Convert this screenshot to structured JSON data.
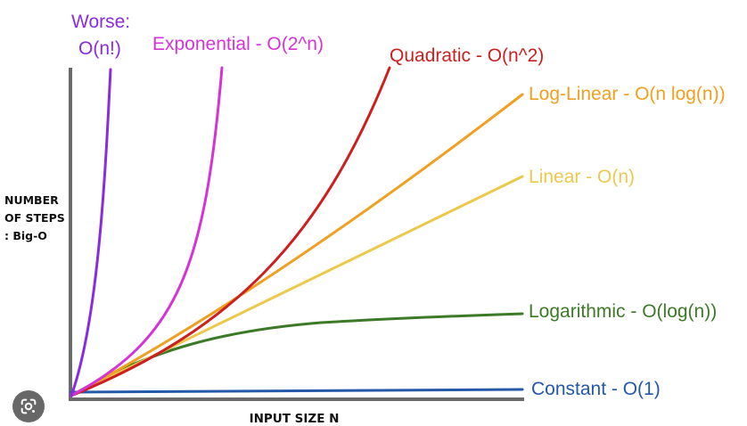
{
  "chart_data": {
    "type": "line",
    "xlabel": "INPUT SIZE N",
    "ylabel": [
      "NUMBER",
      "OF STEPS",
      ": Big-O"
    ],
    "grid": false,
    "legend": "inline-at-line-ends",
    "series": [
      {
        "key": "factorial",
        "label_lines": [
          "Worse:",
          "O(n!)"
        ],
        "color": "#8a2be2"
      },
      {
        "key": "exponential",
        "label_lines": [
          "Exponential - O(2^n)"
        ],
        "color": "#d633d6"
      },
      {
        "key": "quadratic",
        "label_lines": [
          "Quadratic - O(n^2)"
        ],
        "color": "#cc1f1f"
      },
      {
        "key": "loglinear",
        "label_lines": [
          "Log-Linear - O(n log(n))"
        ],
        "color": "#f0a020"
      },
      {
        "key": "linear",
        "label_lines": [
          "Linear - O(n)"
        ],
        "color": "#ecc94b"
      },
      {
        "key": "logarithmic",
        "label_lines": [
          "Logarithmic - O(log(n))"
        ],
        "color": "#3c7a28"
      },
      {
        "key": "constant",
        "label_lines": [
          "Constant - O(1)"
        ],
        "color": "#2458a8"
      }
    ]
  },
  "overlay": {
    "lens_icon": "google-lens-icon"
  }
}
